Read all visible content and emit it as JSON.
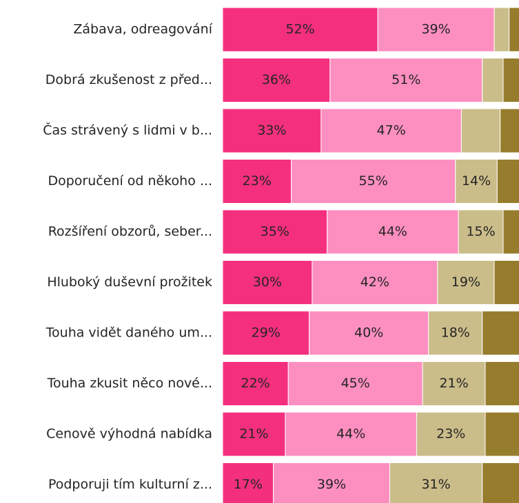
{
  "chart_data": {
    "type": "stacked-bar-horizontal",
    "categories": [
      "Zábava, odreagování",
      "Dobrá zkušenost z před...",
      "Čas strávený s lidmi v b...",
      "Doporučení od někoho ...",
      "Rozšíření obzorů, seber...",
      "Hluboký duševní prožitek",
      "Touha vidět daného um...",
      "Touha zkusit něco nové...",
      "Cenově výhodná nabídka",
      "Podporuji tím kulturní z..."
    ],
    "xlim": [
      0,
      100
    ],
    "series": [
      {
        "color": "#f4307e",
        "values": [
          52,
          36,
          33,
          23,
          35,
          30,
          29,
          22,
          21,
          17
        ],
        "value_labels": [
          "52%",
          "36%",
          "33%",
          "23%",
          "35%",
          "30%",
          "29%",
          "22%",
          "21%",
          "17%"
        ]
      },
      {
        "color": "#fd8fc0",
        "values": [
          39,
          51,
          47,
          55,
          44,
          42,
          40,
          45,
          44,
          39
        ],
        "value_labels": [
          "39%",
          "51%",
          "47%",
          "55%",
          "44%",
          "42%",
          "40%",
          "45%",
          "44%",
          "39%"
        ]
      },
      {
        "color": "#cbbd8a",
        "values": [
          5,
          7,
          13,
          14,
          15,
          19,
          18,
          21,
          23,
          31
        ],
        "value_labels": [
          null,
          null,
          null,
          "14%",
          "15%",
          "19%",
          "18%",
          "21%",
          "23%",
          "31%"
        ]
      },
      {
        "color": "#967c2d",
        "values": [
          4,
          6,
          7,
          8,
          6,
          9,
          13,
          12,
          12,
          13
        ],
        "value_labels": [
          null,
          null,
          null,
          null,
          null,
          null,
          null,
          null,
          null,
          null
        ]
      }
    ]
  }
}
